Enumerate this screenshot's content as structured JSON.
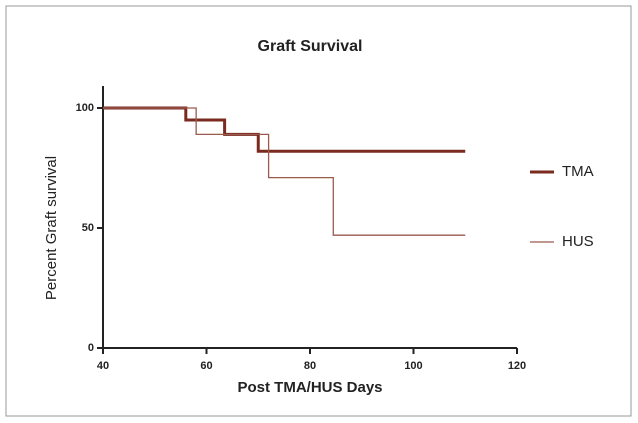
{
  "chart_data": {
    "type": "step",
    "title": "Graft Survival",
    "x_label": "Post TMA/HUS Days",
    "y_label": "Percent Graft survival",
    "x": [
      40,
      56,
      58,
      63.5,
      70,
      72,
      84.5,
      110
    ],
    "series": [
      {
        "name": "TMA",
        "color": "#7a2a1f",
        "width": 3,
        "values": [
          100,
          95,
          95,
          89,
          82,
          82,
          82,
          82
        ]
      },
      {
        "name": "HUS",
        "color": "#9a5a4e",
        "width": 1.3,
        "values": [
          100,
          100,
          89,
          89,
          89,
          71,
          47,
          47
        ]
      }
    ],
    "xlim": [
      40,
      120
    ],
    "xticks": [
      40,
      60,
      80,
      100,
      120
    ],
    "ylim": [
      0,
      100
    ],
    "yticks": [
      0,
      50,
      100
    ],
    "legend": "right"
  }
}
